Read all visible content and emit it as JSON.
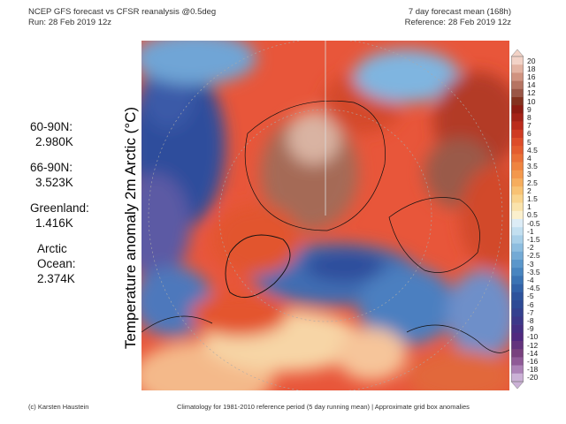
{
  "header": {
    "left_line1": "NCEP GFS forecast vs CFSR reanalysis @0.5deg",
    "left_line2": "Run: 28 Feb 2019 12z",
    "right_line1": "7 day forecast mean (168h)",
    "right_line2": "Reference: 28 Feb 2019 12z"
  },
  "stats": [
    {
      "label": "60-90N:",
      "value": "2.980K"
    },
    {
      "label": "66-90N:",
      "value": "3.523K"
    },
    {
      "label": "Greenland:",
      "value": "1.416K"
    },
    {
      "label": "Arctic\nOcean:",
      "value": "2.374K"
    }
  ],
  "y_axis_label": "Temperature anomaly 2m Arctic (°C)",
  "colorbar": {
    "ticks": [
      "20",
      "18",
      "16",
      "14",
      "12",
      "10",
      "9",
      "8",
      "7",
      "6",
      "5",
      "4.5",
      "4",
      "3.5",
      "3",
      "2.5",
      "2",
      "1.5",
      "1",
      "0.5",
      "-0.5",
      "-1",
      "-1.5",
      "-2",
      "-2.5",
      "-3",
      "-3.5",
      "-4",
      "-4.5",
      "-5",
      "-6",
      "-7",
      "-8",
      "-9",
      "-10",
      "-12",
      "-14",
      "-16",
      "-18",
      "-20"
    ],
    "colors": [
      "#f2d2c6",
      "#e3b3a2",
      "#d09380",
      "#b67462",
      "#9a5646",
      "#84321f",
      "#8e1c12",
      "#a42217",
      "#bb2c1d",
      "#cf3b23",
      "#dd4d2a",
      "#e45d2f",
      "#ea7037",
      "#ef8440",
      "#f3984c",
      "#f6ad5d",
      "#f8c273",
      "#f9d48e",
      "#fae3ac",
      "#fbf0cd",
      "#dcecf6",
      "#c2dff0",
      "#a8cfe8",
      "#8dbddf",
      "#73aad5",
      "#5b97cb",
      "#4885c0",
      "#3a73b4",
      "#3162a8",
      "#2d539c",
      "#2e4a95",
      "#34418f",
      "#3c3889",
      "#452f83",
      "#50297f",
      "#63337d",
      "#78417f",
      "#8f5a97",
      "#ac82b7",
      "#cbb1d6"
    ],
    "top_arrow_color": "#f2d2c6",
    "bottom_arrow_color": "#cbb1d6"
  },
  "footer": {
    "credit": "(c) Karsten Haustein",
    "note": "Climatology for 1981-2010 reference period (5 day running mean) | Approximate grid box anomalies"
  }
}
